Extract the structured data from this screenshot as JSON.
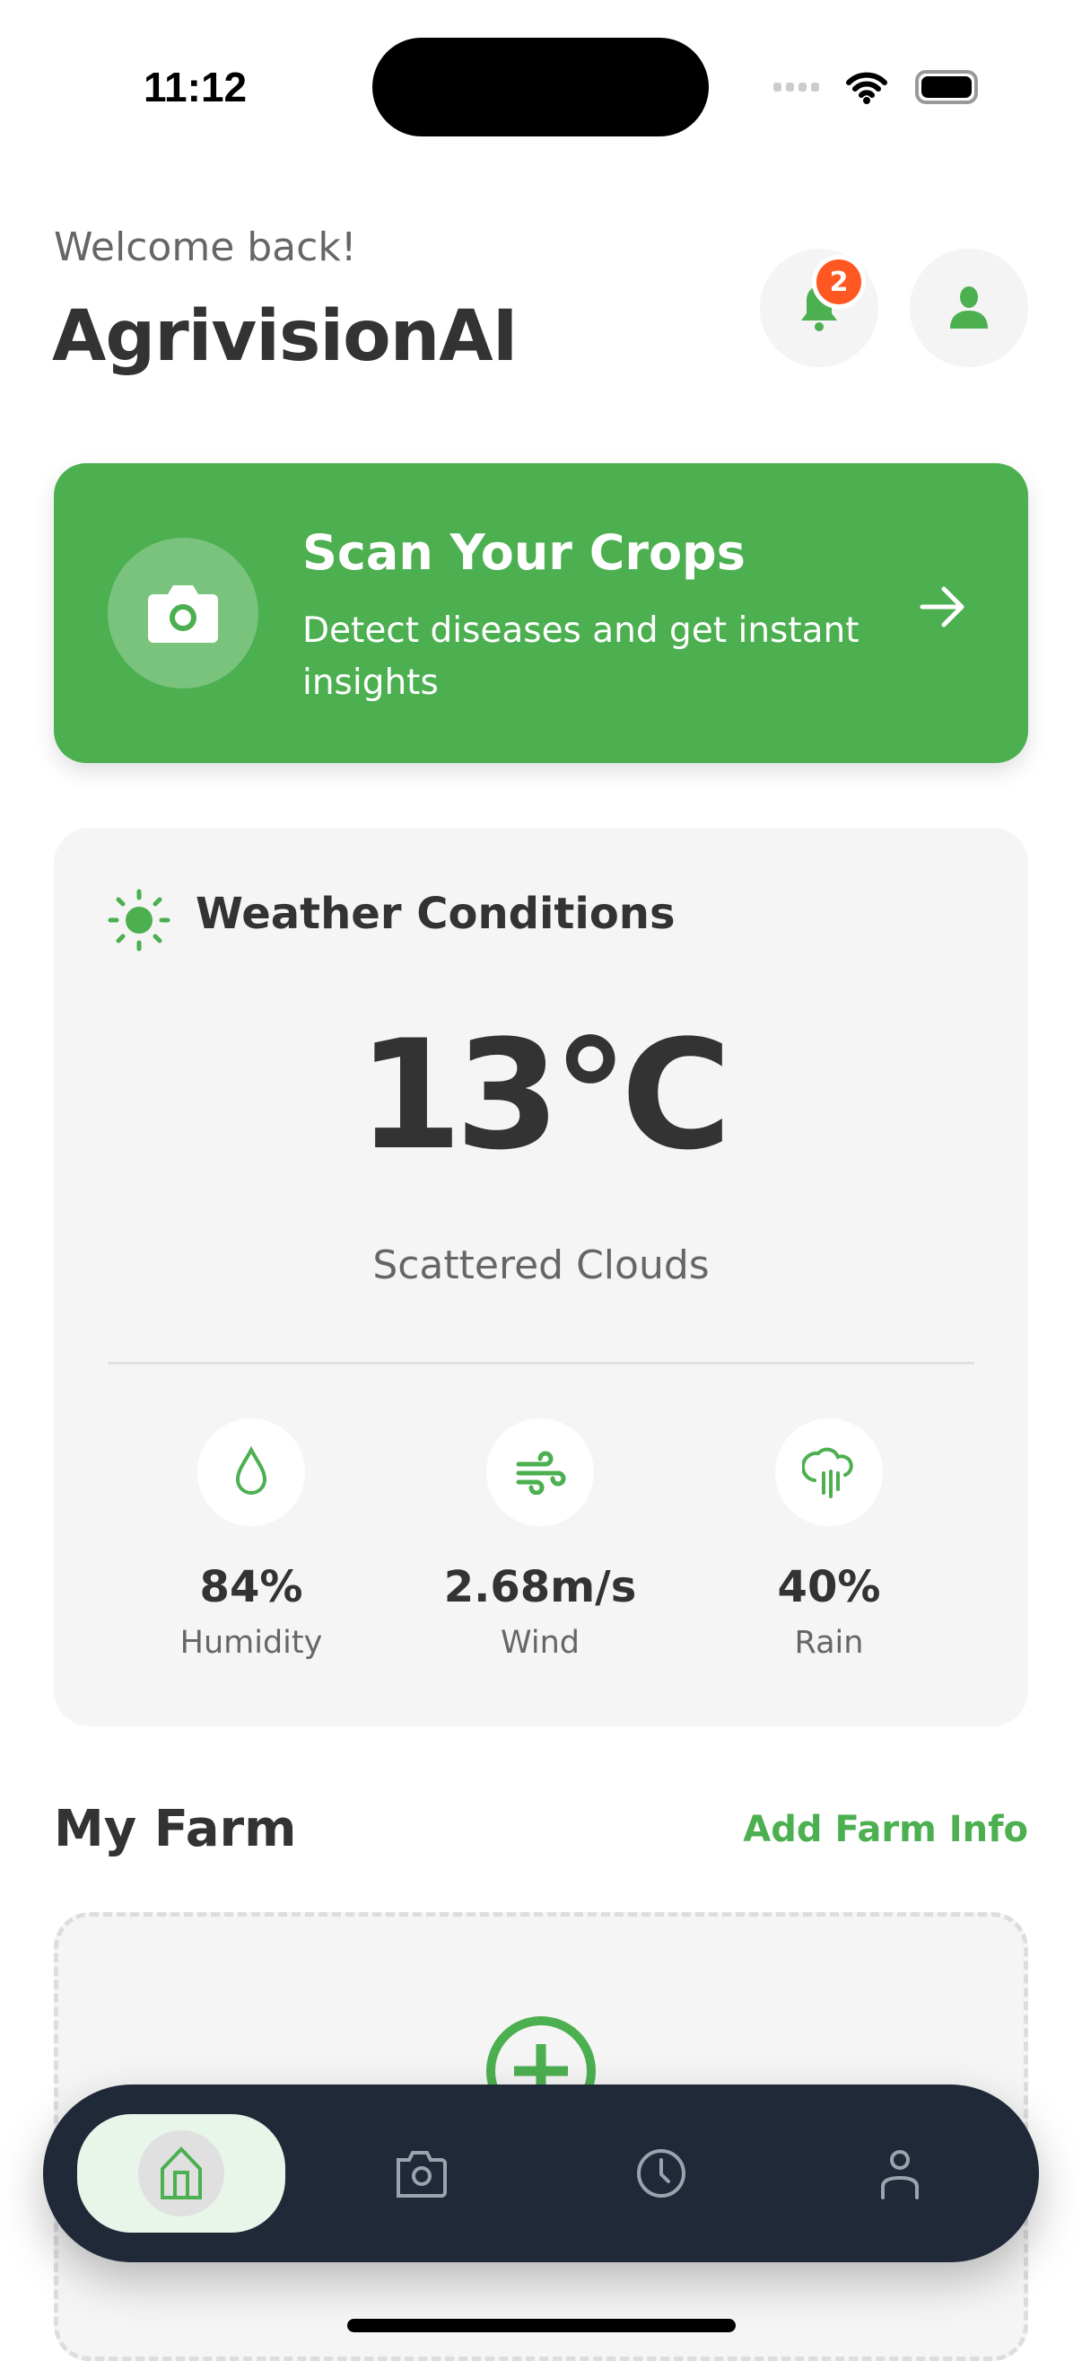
{
  "status_bar": {
    "time": "11:12"
  },
  "header": {
    "greeting": "Welcome back!",
    "app_title": "AgrivisionAI",
    "notification_count": "2"
  },
  "scan_card": {
    "title": "Scan Your Crops",
    "subtitle": "Detect diseases and get instant insights"
  },
  "weather": {
    "title": "Weather Conditions",
    "temperature": "13°C",
    "condition": "Scattered Clouds",
    "stats": [
      {
        "icon": "droplet-icon",
        "value": "84%",
        "label": "Humidity"
      },
      {
        "icon": "wind-icon",
        "value": "2.68m/s",
        "label": "Wind"
      },
      {
        "icon": "rain-cloud-icon",
        "value": "40%",
        "label": "Rain"
      }
    ]
  },
  "farm": {
    "title": "My Farm",
    "add_label": "Add Farm Info"
  },
  "nav": {
    "items": [
      {
        "icon": "home-icon",
        "active": true
      },
      {
        "icon": "camera-icon"
      },
      {
        "icon": "clock-icon"
      },
      {
        "icon": "user-icon"
      }
    ]
  },
  "colors": {
    "accent": "#4CAF50",
    "badge": "#FF5722",
    "nav_bg": "#1F2937"
  }
}
